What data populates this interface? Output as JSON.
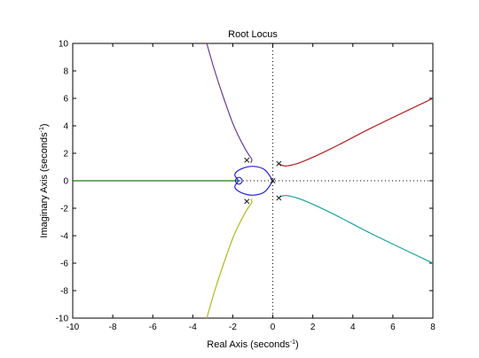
{
  "chart_data": {
    "type": "line",
    "title": "Root Locus",
    "xlabel_main": "Real Axis (seconds",
    "xlabel_sup": "-1",
    "xlabel_close": ")",
    "ylabel_main": "Imaginary Axis (seconds",
    "ylabel_sup": "-1",
    "ylabel_close": ")",
    "xlim": [
      -10,
      8
    ],
    "ylim": [
      -10,
      10
    ],
    "xticks": [
      -10,
      -8,
      -6,
      -4,
      -2,
      0,
      2,
      4,
      6,
      8
    ],
    "yticks": [
      -10,
      -8,
      -6,
      -4,
      -2,
      0,
      2,
      4,
      6,
      8,
      10
    ],
    "grid": false,
    "legend": "none",
    "axes_lines": "dotted lines at x=0 and y=0",
    "poles": [
      [
        -1.3,
        1.5
      ],
      [
        -1.3,
        -1.5
      ],
      [
        0.3,
        1.25
      ],
      [
        0.3,
        -1.25
      ],
      [
        0.0,
        0.0
      ]
    ],
    "zeros": [
      [
        -1.7,
        0.0
      ]
    ],
    "series": [
      {
        "color": "#1a7a1a",
        "points": [
          [
            -10,
            0
          ],
          [
            -1.7,
            0
          ]
        ]
      },
      {
        "color": "#6a3d8c",
        "points": [
          [
            -3.3,
            10
          ],
          [
            -2.9,
            8
          ],
          [
            -2.45,
            6
          ],
          [
            -1.95,
            4
          ],
          [
            -1.45,
            2.5
          ],
          [
            -1.2,
            1.9
          ],
          [
            -1.05,
            1.55
          ],
          [
            -1.1,
            1.3
          ]
        ]
      },
      {
        "color": "#b0b822",
        "points": [
          [
            -3.3,
            -10
          ],
          [
            -2.9,
            -8
          ],
          [
            -2.45,
            -6
          ],
          [
            -1.95,
            -4
          ],
          [
            -1.45,
            -2.5
          ],
          [
            -1.2,
            -1.9
          ],
          [
            -1.05,
            -1.55
          ],
          [
            -1.1,
            -1.3
          ]
        ]
      },
      {
        "color": "#2323c8",
        "points": [
          [
            -1.7,
            0
          ],
          [
            -1.9,
            0.45
          ],
          [
            -1.6,
            0.85
          ],
          [
            -1.0,
            1.05
          ],
          [
            -0.4,
            0.8
          ],
          [
            0.0,
            0
          ]
        ]
      },
      {
        "color": "#2323c8",
        "points": [
          [
            -1.7,
            0
          ],
          [
            -1.9,
            -0.45
          ],
          [
            -1.6,
            -0.85
          ],
          [
            -1.0,
            -1.05
          ],
          [
            -0.4,
            -0.8
          ],
          [
            0.0,
            0
          ]
        ]
      },
      {
        "color": "#b02020",
        "points": [
          [
            0.3,
            1.25
          ],
          [
            0.5,
            1.1
          ],
          [
            0.8,
            1.1
          ],
          [
            1.5,
            1.4
          ],
          [
            3,
            2.4
          ],
          [
            5,
            3.9
          ],
          [
            8,
            6
          ]
        ]
      },
      {
        "color": "#1aa0a0",
        "points": [
          [
            0.3,
            -1.25
          ],
          [
            0.5,
            -1.1
          ],
          [
            0.8,
            -1.1
          ],
          [
            1.5,
            -1.4
          ],
          [
            3,
            -2.4
          ],
          [
            5,
            -3.9
          ],
          [
            8,
            -6
          ]
        ]
      }
    ]
  }
}
